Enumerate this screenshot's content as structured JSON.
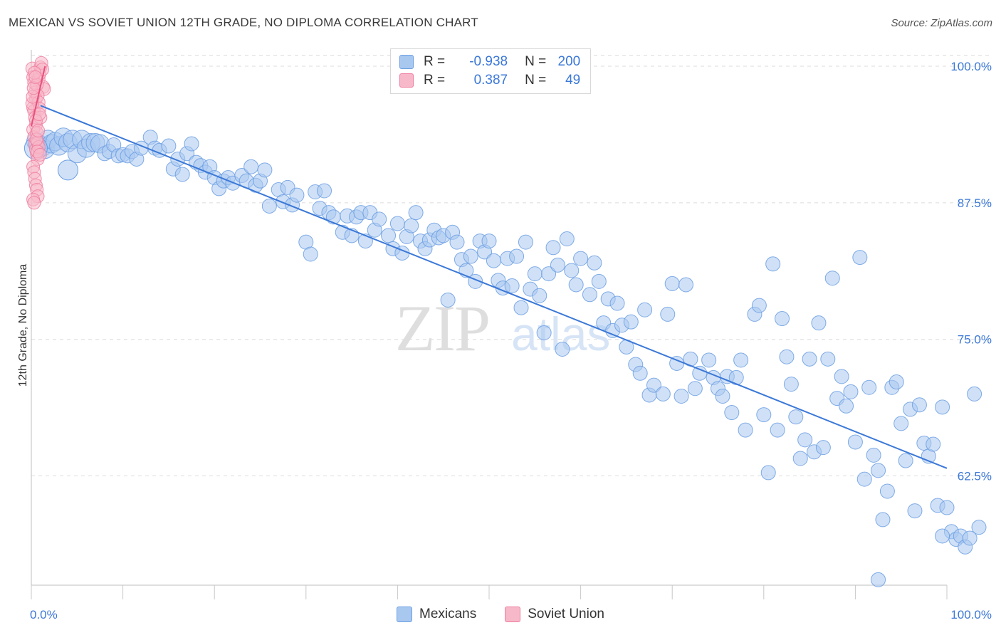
{
  "title": "MEXICAN VS SOVIET UNION 12TH GRADE, NO DIPLOMA CORRELATION CHART",
  "source": "Source: ZipAtlas.com",
  "legend": {
    "r_label": "R =",
    "n_label": "N =",
    "mexicans": {
      "r": "-0.938",
      "n": "200"
    },
    "soviet": {
      "r": "0.387",
      "n": "49"
    }
  },
  "colors": {
    "blue_fill": "#a9c8f0",
    "blue_stroke": "#6b9ee2",
    "blue_line": "#3b78d8",
    "pink_fill": "#f7b8c9",
    "pink_stroke": "#ef7ea0",
    "pink_line": "#e8507a",
    "axis_text": "#3b78d8"
  },
  "chart_data": {
    "type": "scatter",
    "title": "MEXICAN VS SOVIET UNION 12TH GRADE, NO DIPLOMA CORRELATION CHART",
    "xlabel": "",
    "ylabel": "12th Grade, No Diploma",
    "xlim": [
      0,
      100
    ],
    "ylim": [
      52.5,
      101.5
    ],
    "x_tick_labels": [
      "0.0%",
      "100.0%"
    ],
    "y_ticks": [
      62.5,
      75.0,
      87.5,
      100.0
    ],
    "y_tick_labels": [
      "62.5%",
      "75.0%",
      "87.5%",
      "100.0%"
    ],
    "grid": true,
    "watermark": "ZIPatlas",
    "series": [
      {
        "name": "Mexicans",
        "color": "#a9c8f0",
        "trend": {
          "x": [
            1.0,
            100.0
          ],
          "y": [
            96.4,
            63.2
          ]
        },
        "points": [
          [
            0.5,
            93.1
          ],
          [
            0.8,
            92.9
          ],
          [
            1.2,
            92.6
          ],
          [
            1.5,
            92.4
          ],
          [
            1.8,
            93.3
          ],
          [
            2.2,
            92.9
          ],
          [
            2.6,
            93.1
          ],
          [
            3.0,
            92.7
          ],
          [
            3.5,
            93.5
          ],
          [
            4.0,
            93.0
          ],
          [
            4.5,
            93.3
          ],
          [
            5.0,
            92.0
          ],
          [
            5.5,
            93.3
          ],
          [
            6.0,
            92.5
          ],
          [
            6.5,
            93.0
          ],
          [
            7.0,
            93.0
          ],
          [
            7.5,
            92.9
          ],
          [
            8.0,
            92.0
          ],
          [
            8.5,
            92.2
          ],
          [
            9.0,
            92.8
          ],
          [
            9.5,
            91.8
          ],
          [
            10.0,
            91.9
          ],
          [
            10.5,
            91.8
          ],
          [
            11.0,
            92.2
          ],
          [
            11.5,
            91.5
          ],
          [
            12.0,
            92.5
          ],
          [
            13.0,
            93.5
          ],
          [
            13.5,
            92.5
          ],
          [
            14.0,
            92.3
          ],
          [
            15.0,
            92.7
          ],
          [
            15.5,
            90.6
          ],
          [
            16.0,
            91.5
          ],
          [
            16.5,
            90.1
          ],
          [
            17.0,
            92.0
          ],
          [
            17.5,
            92.9
          ],
          [
            18.0,
            91.2
          ],
          [
            18.5,
            90.9
          ],
          [
            19.0,
            90.3
          ],
          [
            19.5,
            90.8
          ],
          [
            20.0,
            89.8
          ],
          [
            20.5,
            88.8
          ],
          [
            21.0,
            89.5
          ],
          [
            21.5,
            89.8
          ],
          [
            22.0,
            89.3
          ],
          [
            23.0,
            90.0
          ],
          [
            23.5,
            89.5
          ],
          [
            24.0,
            90.8
          ],
          [
            24.5,
            89.1
          ],
          [
            25.0,
            89.5
          ],
          [
            25.5,
            90.5
          ],
          [
            26.0,
            87.2
          ],
          [
            27.0,
            88.7
          ],
          [
            27.5,
            87.6
          ],
          [
            28.0,
            88.9
          ],
          [
            28.5,
            87.3
          ],
          [
            29.0,
            88.2
          ],
          [
            30.0,
            83.9
          ],
          [
            30.5,
            82.8
          ],
          [
            31.0,
            88.5
          ],
          [
            31.5,
            87.0
          ],
          [
            32.0,
            88.6
          ],
          [
            32.5,
            86.6
          ],
          [
            33.0,
            86.2
          ],
          [
            34.0,
            84.8
          ],
          [
            34.5,
            86.3
          ],
          [
            35.0,
            84.5
          ],
          [
            35.5,
            86.2
          ],
          [
            36.0,
            86.6
          ],
          [
            36.5,
            84.0
          ],
          [
            37.0,
            86.6
          ],
          [
            37.5,
            85.0
          ],
          [
            38.0,
            86.0
          ],
          [
            39.0,
            84.5
          ],
          [
            39.5,
            83.3
          ],
          [
            40.0,
            85.6
          ],
          [
            40.5,
            82.9
          ],
          [
            41.0,
            84.4
          ],
          [
            41.5,
            85.4
          ],
          [
            42.0,
            86.6
          ],
          [
            42.5,
            84.0
          ],
          [
            43.0,
            83.3
          ],
          [
            43.5,
            84.1
          ],
          [
            44.0,
            85.0
          ],
          [
            44.5,
            84.3
          ],
          [
            45.0,
            84.5
          ],
          [
            45.5,
            78.6
          ],
          [
            46.0,
            84.8
          ],
          [
            46.5,
            83.9
          ],
          [
            47.0,
            82.3
          ],
          [
            47.5,
            81.3
          ],
          [
            48.0,
            82.6
          ],
          [
            48.5,
            80.3
          ],
          [
            49.0,
            84.0
          ],
          [
            49.5,
            83.0
          ],
          [
            50.0,
            84.0
          ],
          [
            50.5,
            82.2
          ],
          [
            51.0,
            80.4
          ],
          [
            51.5,
            79.7
          ],
          [
            52.0,
            82.4
          ],
          [
            52.5,
            79.9
          ],
          [
            53.0,
            82.6
          ],
          [
            53.5,
            77.9
          ],
          [
            54.0,
            83.9
          ],
          [
            54.5,
            79.6
          ],
          [
            55.0,
            81.0
          ],
          [
            55.5,
            79.0
          ],
          [
            56.0,
            75.6
          ],
          [
            56.5,
            81.0
          ],
          [
            57.0,
            83.4
          ],
          [
            57.5,
            81.8
          ],
          [
            58.0,
            74.1
          ],
          [
            58.5,
            84.2
          ],
          [
            59.0,
            81.3
          ],
          [
            59.5,
            80.0
          ],
          [
            60.0,
            82.4
          ],
          [
            61.0,
            79.1
          ],
          [
            61.5,
            82.0
          ],
          [
            62.0,
            80.3
          ],
          [
            62.5,
            76.5
          ],
          [
            63.0,
            78.7
          ],
          [
            63.5,
            75.8
          ],
          [
            64.0,
            78.3
          ],
          [
            64.5,
            76.3
          ],
          [
            65.0,
            74.3
          ],
          [
            65.5,
            76.6
          ],
          [
            66.0,
            72.7
          ],
          [
            66.5,
            71.9
          ],
          [
            67.0,
            77.7
          ],
          [
            67.5,
            69.9
          ],
          [
            68.0,
            70.8
          ],
          [
            69.0,
            70.0
          ],
          [
            69.5,
            77.3
          ],
          [
            70.0,
            80.1
          ],
          [
            70.5,
            72.8
          ],
          [
            71.0,
            69.8
          ],
          [
            71.5,
            80.0
          ],
          [
            72.0,
            73.2
          ],
          [
            72.5,
            70.5
          ],
          [
            73.0,
            71.9
          ],
          [
            74.0,
            73.1
          ],
          [
            74.5,
            71.5
          ],
          [
            75.0,
            70.5
          ],
          [
            75.5,
            69.8
          ],
          [
            76.0,
            71.6
          ],
          [
            76.5,
            68.3
          ],
          [
            77.0,
            71.5
          ],
          [
            77.5,
            73.1
          ],
          [
            78.0,
            66.7
          ],
          [
            79.0,
            77.3
          ],
          [
            79.5,
            78.1
          ],
          [
            80.0,
            68.1
          ],
          [
            80.5,
            62.8
          ],
          [
            81.0,
            81.9
          ],
          [
            81.5,
            66.7
          ],
          [
            82.0,
            76.9
          ],
          [
            82.5,
            73.4
          ],
          [
            83.0,
            70.9
          ],
          [
            83.5,
            67.9
          ],
          [
            84.0,
            64.1
          ],
          [
            84.5,
            65.8
          ],
          [
            85.0,
            73.2
          ],
          [
            85.5,
            64.7
          ],
          [
            86.0,
            76.5
          ],
          [
            86.5,
            65.1
          ],
          [
            87.0,
            73.2
          ],
          [
            87.5,
            80.6
          ],
          [
            88.0,
            69.6
          ],
          [
            88.5,
            71.6
          ],
          [
            89.0,
            68.9
          ],
          [
            89.5,
            70.2
          ],
          [
            90.0,
            65.6
          ],
          [
            90.5,
            82.5
          ],
          [
            91.0,
            62.2
          ],
          [
            91.5,
            70.6
          ],
          [
            92.0,
            64.4
          ],
          [
            92.5,
            63.0
          ],
          [
            93.0,
            58.5
          ],
          [
            93.5,
            61.1
          ],
          [
            94.0,
            70.6
          ],
          [
            94.5,
            71.1
          ],
          [
            95.0,
            67.3
          ],
          [
            95.5,
            63.9
          ],
          [
            96.0,
            68.6
          ],
          [
            96.5,
            59.3
          ],
          [
            97.0,
            69.0
          ],
          [
            97.5,
            65.5
          ],
          [
            98.0,
            64.3
          ],
          [
            98.5,
            65.4
          ],
          [
            99.0,
            59.8
          ],
          [
            99.5,
            68.8
          ],
          [
            100.0,
            59.6
          ],
          [
            100.5,
            57.4
          ],
          [
            101.0,
            56.7
          ],
          [
            101.5,
            57.0
          ],
          [
            102.0,
            56.0
          ],
          [
            102.5,
            56.8
          ],
          [
            103.0,
            70.0
          ],
          [
            103.5,
            57.8
          ],
          [
            92.5,
            53.0
          ],
          [
            99.5,
            57.0
          ]
        ]
      },
      {
        "name": "Soviet Union",
        "color": "#f7b8c9",
        "trend": {
          "x": [
            0.0,
            1.5
          ],
          "y": [
            94.5,
            100.0
          ]
        },
        "points": [
          [
            0.1,
            99.8
          ],
          [
            0.2,
            99.0
          ],
          [
            0.3,
            98.5
          ],
          [
            0.4,
            97.6
          ],
          [
            0.5,
            97.0
          ],
          [
            0.2,
            96.2
          ],
          [
            0.3,
            95.9
          ],
          [
            0.4,
            95.3
          ],
          [
            0.5,
            94.6
          ],
          [
            0.2,
            94.2
          ],
          [
            0.3,
            93.5
          ],
          [
            0.4,
            92.9
          ],
          [
            0.5,
            92.4
          ],
          [
            0.6,
            92.0
          ],
          [
            0.7,
            91.5
          ],
          [
            0.2,
            90.8
          ],
          [
            0.3,
            90.3
          ],
          [
            0.4,
            89.7
          ],
          [
            0.5,
            89.1
          ],
          [
            0.6,
            88.7
          ],
          [
            0.7,
            88.1
          ],
          [
            0.2,
            87.8
          ],
          [
            0.3,
            87.5
          ],
          [
            0.8,
            98.8
          ],
          [
            0.9,
            99.3
          ],
          [
            1.0,
            99.9
          ],
          [
            1.1,
            100.3
          ],
          [
            1.2,
            99.7
          ],
          [
            1.3,
            98.1
          ],
          [
            1.4,
            97.9
          ],
          [
            0.6,
            98.3
          ],
          [
            0.7,
            97.3
          ],
          [
            0.8,
            96.7
          ],
          [
            0.9,
            96.1
          ],
          [
            1.0,
            95.3
          ],
          [
            0.5,
            95.0
          ],
          [
            0.6,
            93.9
          ],
          [
            0.7,
            93.0
          ],
          [
            0.8,
            92.6
          ],
          [
            0.1,
            96.6
          ],
          [
            0.15,
            97.2
          ],
          [
            0.25,
            98.0
          ],
          [
            0.35,
            99.4
          ],
          [
            0.45,
            99.0
          ],
          [
            0.55,
            93.3
          ],
          [
            0.65,
            92.2
          ],
          [
            0.75,
            94.1
          ],
          [
            0.85,
            95.6
          ],
          [
            0.95,
            91.9
          ]
        ]
      }
    ]
  }
}
